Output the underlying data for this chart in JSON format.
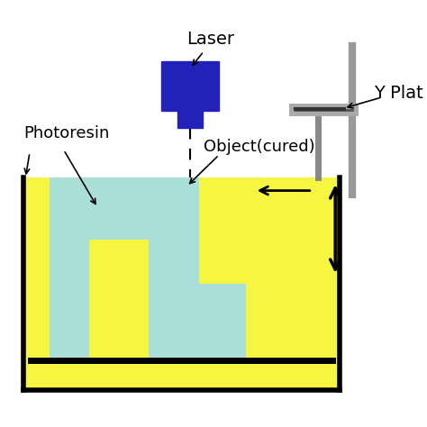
{
  "background_color": "#ffffff",
  "vat_color": "#f5f542",
  "resin_color": "#aaded8",
  "laser_box_color": "#2222bb",
  "gray_rod_color": "#999999",
  "laser_label": "Laser",
  "photoresin_label": "Photoresin",
  "object_label": "Object(cured)",
  "yplat_label": "Y Plat",
  "label_fontsize": 12
}
